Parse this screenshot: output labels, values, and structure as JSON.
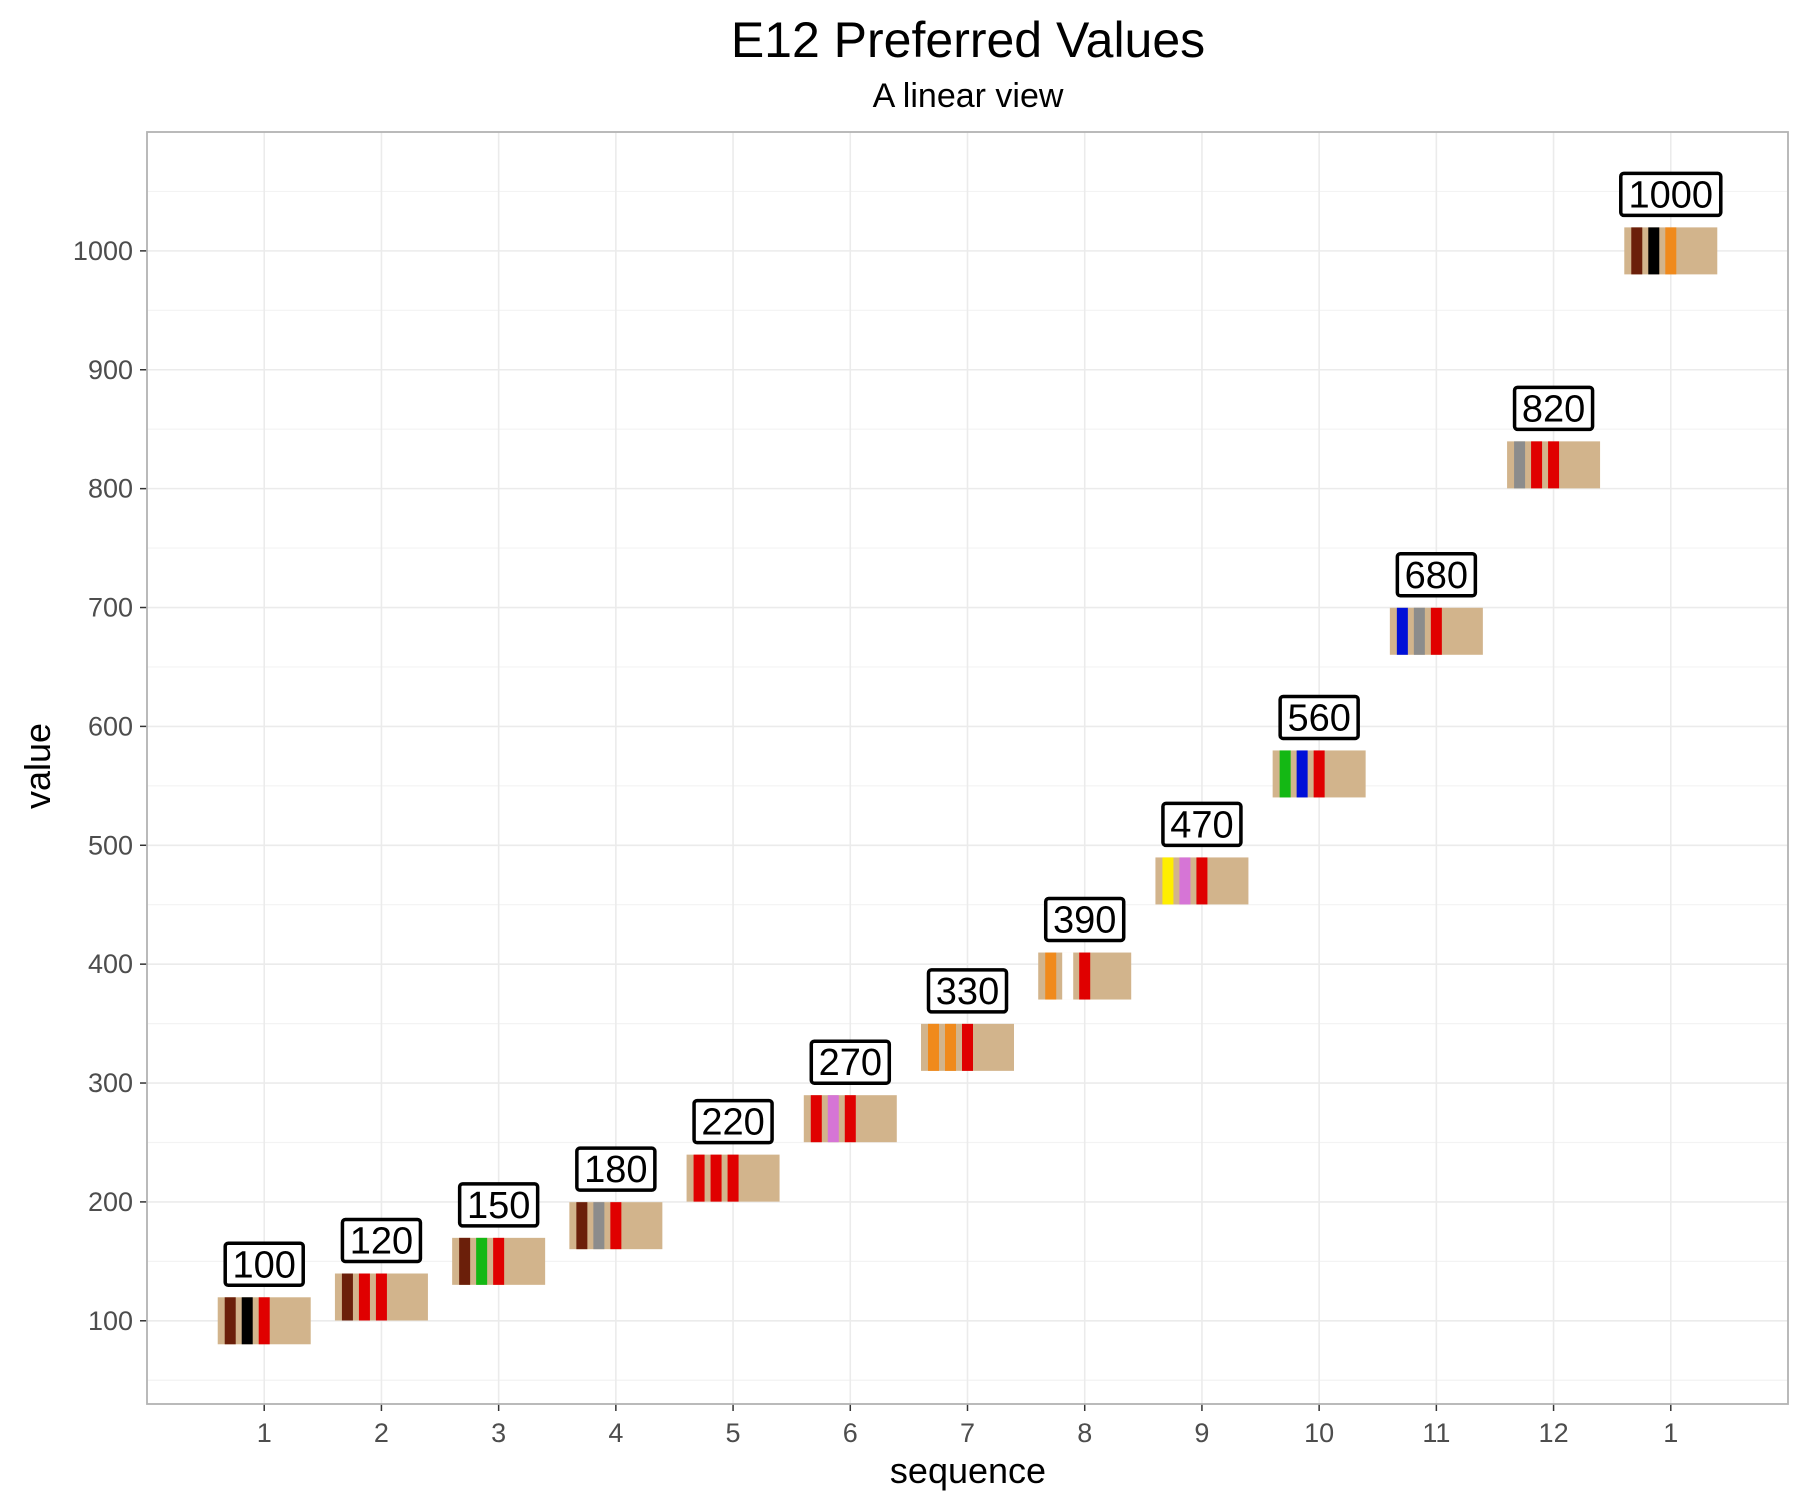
{
  "chart_data": {
    "type": "scatter",
    "title": "E12 Preferred Values",
    "subtitle": "A linear view",
    "xlabel": "sequence",
    "ylabel": "value",
    "ylim": [
      30,
      1100
    ],
    "y_ticks": [
      100,
      200,
      300,
      400,
      500,
      600,
      700,
      800,
      900,
      1000
    ],
    "x_tick_labels": [
      "1",
      "2",
      "3",
      "4",
      "5",
      "6",
      "7",
      "8",
      "9",
      "10",
      "11",
      "12",
      "1"
    ],
    "grid": true,
    "colors": {
      "resistor_body": "#d2b48c",
      "label_border": "#000000",
      "panel_border": "#b3b3b3",
      "grid": "#ebebeb"
    },
    "band_colors": {
      "black": "#000000",
      "brown": "#6b1f0a",
      "red": "#e00000",
      "orange": "#f08a1c",
      "yellow": "#ffee00",
      "green": "#14b814",
      "blue": "#0010d8",
      "violet": "#d675d6",
      "gray": "#8c8c8c",
      "white": "#ffffff"
    },
    "points": [
      {
        "x": 1,
        "value": 100,
        "label": "100",
        "bands": [
          "brown",
          "black",
          "red"
        ]
      },
      {
        "x": 2,
        "value": 120,
        "label": "120",
        "bands": [
          "brown",
          "red",
          "red"
        ]
      },
      {
        "x": 3,
        "value": 150,
        "label": "150",
        "bands": [
          "brown",
          "green",
          "red"
        ]
      },
      {
        "x": 4,
        "value": 180,
        "label": "180",
        "bands": [
          "brown",
          "gray",
          "red"
        ]
      },
      {
        "x": 5,
        "value": 220,
        "label": "220",
        "bands": [
          "red",
          "red",
          "red"
        ]
      },
      {
        "x": 6,
        "value": 270,
        "label": "270",
        "bands": [
          "red",
          "violet",
          "red"
        ]
      },
      {
        "x": 7,
        "value": 330,
        "label": "330",
        "bands": [
          "orange",
          "orange",
          "red"
        ]
      },
      {
        "x": 8,
        "value": 390,
        "label": "390",
        "bands": [
          "orange",
          "white",
          "red"
        ]
      },
      {
        "x": 9,
        "value": 470,
        "label": "470",
        "bands": [
          "yellow",
          "violet",
          "red"
        ]
      },
      {
        "x": 10,
        "value": 560,
        "label": "560",
        "bands": [
          "green",
          "blue",
          "red"
        ]
      },
      {
        "x": 11,
        "value": 680,
        "label": "680",
        "bands": [
          "blue",
          "gray",
          "red"
        ]
      },
      {
        "x": 12,
        "value": 820,
        "label": "820",
        "bands": [
          "gray",
          "red",
          "red"
        ]
      },
      {
        "x": 13,
        "value": 1000,
        "label": "1000",
        "bands": [
          "brown",
          "black",
          "orange"
        ]
      }
    ]
  }
}
